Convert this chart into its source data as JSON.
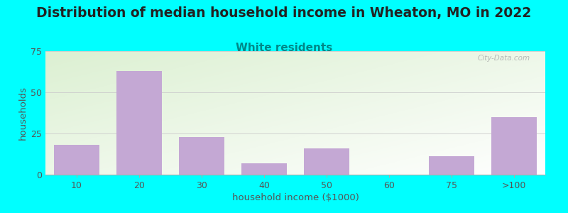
{
  "title": "Distribution of median household income in Wheaton, MO in 2022",
  "subtitle": "White residents",
  "xlabel": "household income ($1000)",
  "ylabel": "households",
  "background_color": "#00FFFF",
  "bar_color": "#c4a8d4",
  "categories": [
    "10",
    "20",
    "30",
    "40",
    "50",
    "60",
    "75",
    ">100"
  ],
  "values": [
    18,
    63,
    23,
    7,
    16,
    0,
    11,
    35
  ],
  "ylim": [
    0,
    75
  ],
  "yticks": [
    0,
    25,
    50,
    75
  ],
  "title_fontsize": 13.5,
  "subtitle_fontsize": 11,
  "subtitle_color": "#008888",
  "axis_label_fontsize": 9.5,
  "tick_fontsize": 9,
  "tick_color": "#555555",
  "label_color": "#555555",
  "title_color": "#222222",
  "watermark": "City-Data.com",
  "grid_color": "#cccccc",
  "spine_color": "#aaaaaa"
}
